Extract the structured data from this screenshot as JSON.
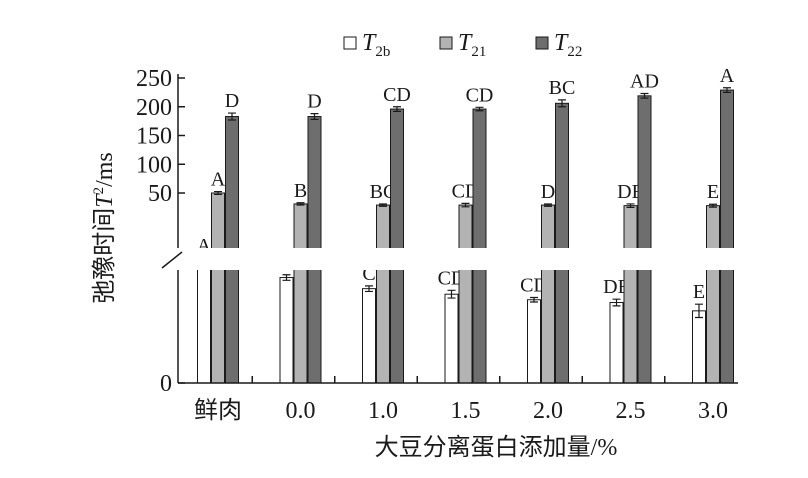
{
  "chart_data": {
    "type": "bar",
    "xlabel": "大豆分离蛋白添加量/%",
    "ylabel_main": "弛豫时间",
    "ylabel_symbol": "T",
    "ylabel_sup": "2",
    "ylabel_unit": "/ms",
    "categories": [
      "鲜肉",
      "0.0",
      "1.0",
      "1.5",
      "2.0",
      "2.5",
      "3.0"
    ],
    "y_ticks": [
      "0",
      "50",
      "100",
      "150",
      "200",
      "250"
    ],
    "y_tick_values": [
      0,
      50,
      100,
      150,
      200,
      250
    ],
    "axis_break": true,
    "legend_position": "top",
    "series": [
      {
        "name": "T2b",
        "legend_main": "T",
        "legend_sub": "2b",
        "color": "#ffffff",
        "values": [
          2.2,
          1.9,
          1.7,
          1.6,
          1.5,
          1.45,
          1.3
        ],
        "errors": [
          0.05,
          0.05,
          0.05,
          0.07,
          0.04,
          0.06,
          0.12
        ],
        "letters": [
          "A",
          "B",
          "C",
          "CD",
          "CD",
          "DE",
          "E"
        ]
      },
      {
        "name": "T21",
        "legend_main": "T",
        "legend_sub": "21",
        "color": "#b3b3b3",
        "values": [
          50,
          31,
          29,
          29,
          29,
          28,
          28
        ],
        "errors": [
          2.5,
          2,
          2,
          3,
          2,
          3,
          2.5
        ],
        "letters": [
          "A",
          "B",
          "BC",
          "CD",
          "D",
          "DE",
          "E"
        ]
      },
      {
        "name": "T22",
        "legend_main": "T",
        "legend_sub": "22",
        "color": "#6e6e6e",
        "values": [
          183,
          183,
          196,
          196,
          206,
          219,
          229
        ],
        "errors": [
          6,
          5,
          4,
          3,
          6,
          4,
          4
        ],
        "letters": [
          "D",
          "D",
          "CD",
          "CD",
          "BC",
          "AD",
          "A"
        ]
      }
    ]
  }
}
